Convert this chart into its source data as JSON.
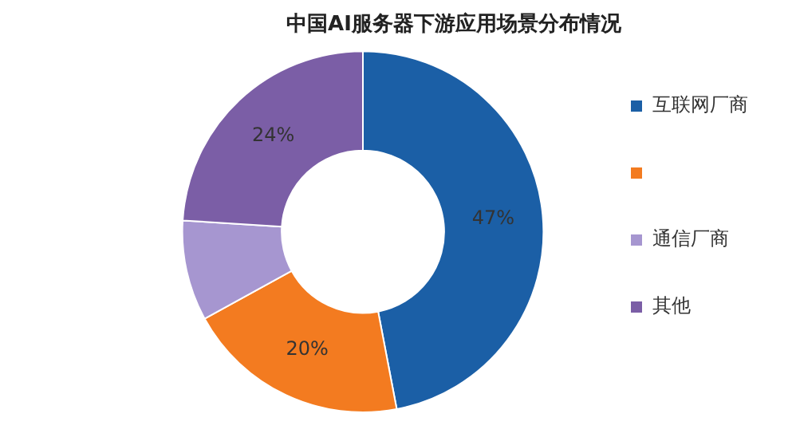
{
  "chart_data": {
    "type": "donut",
    "title": "中国AI服务器下游应用场景分布情况",
    "categories": [
      "互联网厂商",
      null,
      "通信厂商",
      "其他"
    ],
    "values": [
      47,
      20,
      9,
      24
    ],
    "colors": [
      "#1b5fa6",
      "#f37b20",
      "#a696d0",
      "#7b5ea6"
    ],
    "value_labels": [
      "47%",
      "20%",
      null,
      "24%"
    ],
    "legend": "right"
  }
}
